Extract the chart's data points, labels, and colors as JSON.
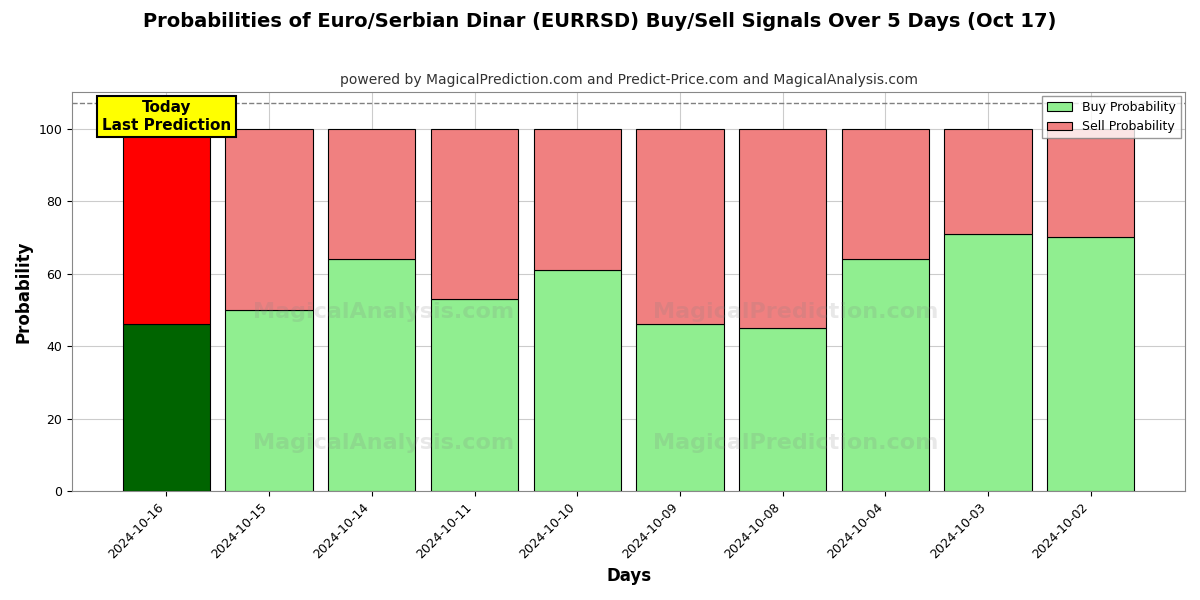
{
  "title": "Probabilities of Euro/Serbian Dinar (EURRSD) Buy/Sell Signals Over 5 Days (Oct 17)",
  "subtitle": "powered by MagicalPrediction.com and Predict-Price.com and MagicalAnalysis.com",
  "xlabel": "Days",
  "ylabel": "Probability",
  "categories": [
    "2024-10-16",
    "2024-10-15",
    "2024-10-14",
    "2024-10-11",
    "2024-10-10",
    "2024-10-09",
    "2024-10-08",
    "2024-10-04",
    "2024-10-03",
    "2024-10-02"
  ],
  "buy_values": [
    46,
    50,
    64,
    53,
    61,
    46,
    45,
    64,
    71,
    70
  ],
  "sell_values": [
    54,
    50,
    36,
    47,
    39,
    54,
    55,
    36,
    29,
    30
  ],
  "buy_colors": [
    "#006400",
    "#90EE90",
    "#90EE90",
    "#90EE90",
    "#90EE90",
    "#90EE90",
    "#90EE90",
    "#90EE90",
    "#90EE90",
    "#90EE90"
  ],
  "sell_colors": [
    "#FF0000",
    "#F08080",
    "#F08080",
    "#F08080",
    "#F08080",
    "#F08080",
    "#F08080",
    "#F08080",
    "#F08080",
    "#F08080"
  ],
  "today_box_color": "#FFFF00",
  "today_label": "Today\nLast Prediction",
  "legend_buy_color": "#90EE90",
  "legend_sell_color": "#F08080",
  "legend_buy_label": "Buy Probability",
  "legend_sell_label": "Sell Probability",
  "ylim": [
    0,
    110
  ],
  "yticks": [
    0,
    20,
    40,
    60,
    80,
    100
  ],
  "dashed_line_y": 107,
  "figsize": [
    12.0,
    6.0
  ],
  "dpi": 100,
  "background_color": "#ffffff",
  "grid_color": "#cccccc",
  "title_fontsize": 14,
  "subtitle_fontsize": 10,
  "axis_label_fontsize": 12,
  "tick_fontsize": 9,
  "bar_width": 0.85,
  "bar_edgecolor": "#000000"
}
